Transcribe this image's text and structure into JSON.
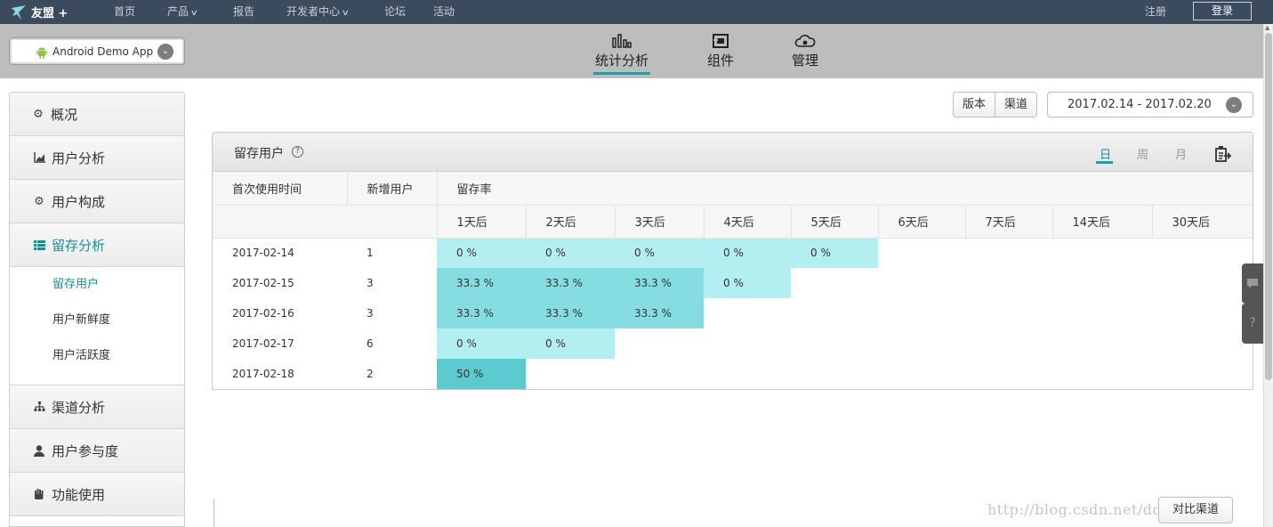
{
  "topbar": {
    "logo": "友盟 +",
    "nav": [
      {
        "label": "首页",
        "caret": false
      },
      {
        "label": "产品",
        "caret": true
      },
      {
        "label": "报告",
        "caret": false
      },
      {
        "label": "开发者中心",
        "caret": true
      },
      {
        "label": "论坛",
        "caret": false
      },
      {
        "label": "活动",
        "caret": false
      }
    ],
    "register": "注册",
    "login": "登录"
  },
  "subbar": {
    "app_name": "Android Demo App",
    "tabs": [
      {
        "label": "统计分析",
        "icon": "bar-chart-icon",
        "active": true
      },
      {
        "label": "组件",
        "icon": "component-icon",
        "active": false
      },
      {
        "label": "管理",
        "icon": "cloud-gear-icon",
        "active": false
      }
    ]
  },
  "sidebar": {
    "items": [
      {
        "label": "概况",
        "icon": "gears-icon"
      },
      {
        "label": "用户分析",
        "icon": "chart-icon"
      },
      {
        "label": "用户构成",
        "icon": "gear-icon"
      },
      {
        "label": "留存分析",
        "icon": "grid-list-icon",
        "active": true
      },
      {
        "label": "渠道分析",
        "icon": "sitemap-icon"
      },
      {
        "label": "用户参与度",
        "icon": "user-icon"
      },
      {
        "label": "功能使用",
        "icon": "hand-icon"
      }
    ],
    "sub_items": [
      {
        "label": "留存用户",
        "active": true
      },
      {
        "label": "用户新鲜度"
      },
      {
        "label": "用户活跃度"
      }
    ]
  },
  "filters": {
    "version": "版本",
    "channel": "渠道",
    "date_range": "2017.02.14 - 2017.02.20"
  },
  "panel": {
    "title": "留存用户",
    "help": "?",
    "periods": [
      "日",
      "周",
      "月"
    ],
    "headers": {
      "first_use": "首次使用时间",
      "new_users": "新增用户",
      "retention": "留存率"
    },
    "day_headers": [
      "1天后",
      "2天后",
      "3天后",
      "4天后",
      "5天后",
      "6天后",
      "7天后",
      "14天后",
      "30天后"
    ],
    "rows": [
      {
        "date": "2017-02-14",
        "new": "1",
        "rates": [
          "0 %",
          "0 %",
          "0 %",
          "0 %",
          "0 %"
        ],
        "levels": [
          1,
          1,
          1,
          1,
          1
        ]
      },
      {
        "date": "2017-02-15",
        "new": "3",
        "rates": [
          "33.3 %",
          "33.3 %",
          "33.3 %",
          "0 %"
        ],
        "levels": [
          2,
          2,
          2,
          1
        ]
      },
      {
        "date": "2017-02-16",
        "new": "3",
        "rates": [
          "33.3 %",
          "33.3 %",
          "33.3 %"
        ],
        "levels": [
          2,
          2,
          2
        ]
      },
      {
        "date": "2017-02-17",
        "new": "6",
        "rates": [
          "0 %",
          "0 %"
        ],
        "levels": [
          1,
          1
        ]
      },
      {
        "date": "2017-02-18",
        "new": "2",
        "rates": [
          "50 %"
        ],
        "levels": [
          3
        ]
      }
    ]
  },
  "float_tabs": {
    "chat": "chat-icon",
    "help": "?"
  },
  "compare_button": "对比渠道",
  "watermark": "http://blog.csdn.net/ddcminds",
  "colors": {
    "accent": "#1aa0a5",
    "level1": "#b3eef0",
    "level2": "#85dde1",
    "level3": "#5ccbd0",
    "topbar": "#3b4a5c"
  }
}
